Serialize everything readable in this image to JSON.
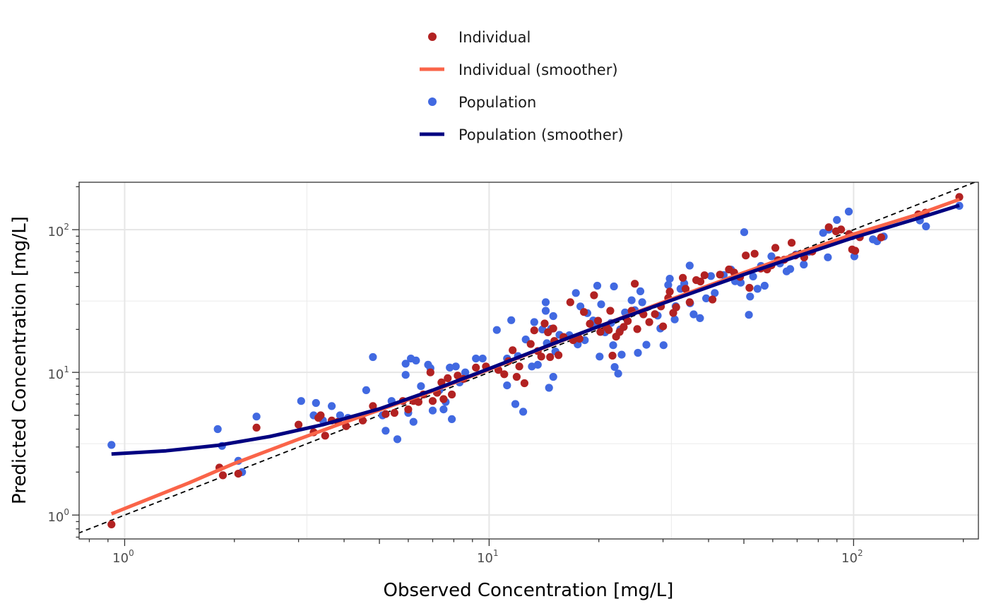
{
  "chart_data": {
    "type": "scatter",
    "xlabel": "Observed Concentration [mg/L]",
    "ylabel": "Predicted Concentration [mg/L]",
    "xscale": "log10",
    "yscale": "log10",
    "xlim": [
      0.75,
      220
    ],
    "ylim": [
      0.68,
      215
    ],
    "grid": true,
    "legend_position": "top",
    "x_ticks": [
      {
        "value": 1,
        "base": "10",
        "exp": "0"
      },
      {
        "value": 10,
        "base": "10",
        "exp": "1"
      },
      {
        "value": 100,
        "base": "10",
        "exp": "2"
      }
    ],
    "y_ticks": [
      {
        "value": 1,
        "base": "10",
        "exp": "0"
      },
      {
        "value": 10,
        "base": "10",
        "exp": "1"
      },
      {
        "value": 100,
        "base": "10",
        "exp": "2"
      }
    ],
    "identity_line": {
      "style": "dashed",
      "color": "#000000"
    },
    "legend": [
      {
        "label": "Individual",
        "kind": "point",
        "color": "#b22222"
      },
      {
        "label": "Individual (smoother)",
        "kind": "line",
        "color": "#fa6449"
      },
      {
        "label": "Population",
        "kind": "point",
        "color": "#4169e1"
      },
      {
        "label": "Population (smoother)",
        "kind": "line",
        "color": "#000080"
      }
    ],
    "series": [
      {
        "name": "Population",
        "color": "#4169e1",
        "points": [
          [
            0.92,
            3.1
          ],
          [
            1.8,
            4.0
          ],
          [
            1.85,
            3.05
          ],
          [
            2.05,
            2.4
          ],
          [
            2.1,
            2.0
          ],
          [
            2.3,
            4.9
          ],
          [
            3.05,
            6.3
          ],
          [
            3.3,
            5.0
          ],
          [
            3.35,
            6.1
          ],
          [
            3.5,
            4.6
          ],
          [
            3.7,
            5.8
          ],
          [
            3.9,
            5.0
          ],
          [
            4.1,
            4.8
          ],
          [
            4.6,
            7.5
          ],
          [
            4.8,
            12.8
          ],
          [
            5.1,
            5.0
          ],
          [
            5.2,
            3.9
          ],
          [
            5.4,
            6.3
          ],
          [
            5.6,
            3.4
          ],
          [
            5.9,
            11.5
          ],
          [
            5.9,
            9.6
          ],
          [
            6.1,
            12.5
          ],
          [
            6.0,
            5.2
          ],
          [
            6.2,
            4.5
          ],
          [
            6.3,
            12.1
          ],
          [
            6.5,
            8.0
          ],
          [
            6.8,
            11.3
          ],
          [
            6.9,
            10.7
          ],
          [
            7.0,
            5.4
          ],
          [
            7.3,
            7.5
          ],
          [
            7.5,
            5.5
          ],
          [
            7.6,
            6.2
          ],
          [
            7.8,
            10.8
          ],
          [
            7.9,
            4.7
          ],
          [
            8.1,
            11.0
          ],
          [
            8.3,
            8.5
          ],
          [
            8.6,
            10.0
          ],
          [
            9.2,
            12.5
          ],
          [
            9.6,
            12.5
          ],
          [
            10.5,
            19.8
          ],
          [
            11.2,
            12.5
          ],
          [
            11.2,
            8.1
          ],
          [
            11.5,
            23.2
          ],
          [
            11.8,
            6.0
          ],
          [
            12.0,
            13.0
          ],
          [
            12.4,
            5.3
          ],
          [
            12.6,
            17.0
          ],
          [
            13.1,
            11.0
          ],
          [
            13.3,
            22.5
          ],
          [
            13.6,
            11.3
          ],
          [
            14.0,
            20.0
          ],
          [
            14.3,
            31.0
          ],
          [
            14.3,
            27.0
          ],
          [
            14.4,
            16.0
          ],
          [
            14.6,
            7.8
          ],
          [
            14.8,
            20.2
          ],
          [
            15.0,
            9.3
          ],
          [
            15.0,
            24.8
          ],
          [
            15.2,
            14.0
          ],
          [
            15.6,
            18.3
          ],
          [
            16.6,
            18.2
          ],
          [
            17.3,
            36.0
          ],
          [
            17.5,
            15.7
          ],
          [
            17.8,
            29.0
          ],
          [
            18.3,
            16.8
          ],
          [
            18.6,
            26.0
          ],
          [
            19.3,
            23.1
          ],
          [
            19.6,
            21.5
          ],
          [
            19.8,
            40.5
          ],
          [
            20.1,
            12.9
          ],
          [
            20.3,
            30.0
          ],
          [
            20.8,
            19.1
          ],
          [
            21.6,
            22.2
          ],
          [
            21.9,
            15.5
          ],
          [
            22.0,
            40.0
          ],
          [
            22.1,
            10.9
          ],
          [
            22.6,
            9.8
          ],
          [
            22.9,
            20.0
          ],
          [
            23.1,
            13.3
          ],
          [
            23.6,
            26.3
          ],
          [
            24.6,
            32.0
          ],
          [
            25.1,
            27.3
          ],
          [
            25.6,
            13.7
          ],
          [
            26.0,
            37.0
          ],
          [
            26.3,
            31.0
          ],
          [
            27.0,
            15.6
          ],
          [
            29.0,
            25.0
          ],
          [
            29.5,
            20.3
          ],
          [
            30.1,
            15.5
          ],
          [
            31.3,
            45.3
          ],
          [
            31.0,
            41.0
          ],
          [
            32.3,
            23.5
          ],
          [
            32.5,
            29.1
          ],
          [
            33.5,
            38.5
          ],
          [
            34.3,
            42.0
          ],
          [
            35.5,
            56.0
          ],
          [
            35.6,
            30.5
          ],
          [
            36.4,
            25.5
          ],
          [
            37.9,
            24.0
          ],
          [
            39.4,
            33.0
          ],
          [
            40.6,
            47.3
          ],
          [
            41.6,
            36.0
          ],
          [
            44.0,
            48.0
          ],
          [
            46.1,
            52.5
          ],
          [
            47.3,
            43.5
          ],
          [
            49.0,
            42.5
          ],
          [
            50.1,
            96.0
          ],
          [
            51.6,
            25.3
          ],
          [
            52.0,
            34.0
          ],
          [
            53.0,
            47.0
          ],
          [
            54.5,
            38.5
          ],
          [
            55.7,
            55.7
          ],
          [
            57.0,
            40.5
          ],
          [
            59.5,
            65.0
          ],
          [
            62.8,
            58.0
          ],
          [
            65.5,
            51.0
          ],
          [
            67.0,
            53.0
          ],
          [
            69.5,
            67.0
          ],
          [
            73.0,
            57.0
          ],
          [
            75.4,
            70.0
          ],
          [
            82.5,
            95.0
          ],
          [
            85.5,
            100.0
          ],
          [
            85.0,
            64.0
          ],
          [
            90.0,
            117.0
          ],
          [
            97.0,
            134.0
          ],
          [
            99.0,
            90.0
          ],
          [
            100.5,
            65.0
          ],
          [
            113.0,
            85.5
          ],
          [
            116.0,
            83.0
          ],
          [
            121.0,
            89.5
          ],
          [
            152.0,
            116.0
          ],
          [
            158.0,
            105.5
          ],
          [
            195.0,
            147.0
          ]
        ]
      },
      {
        "name": "Individual",
        "color": "#b22222",
        "points": [
          [
            0.92,
            0.86
          ],
          [
            1.82,
            2.15
          ],
          [
            1.86,
            1.9
          ],
          [
            2.05,
            1.95
          ],
          [
            2.3,
            4.1
          ],
          [
            3.0,
            4.3
          ],
          [
            3.3,
            3.8
          ],
          [
            3.4,
            4.8
          ],
          [
            3.45,
            5.0
          ],
          [
            3.55,
            3.6
          ],
          [
            3.7,
            4.6
          ],
          [
            3.85,
            4.5
          ],
          [
            4.05,
            4.2
          ],
          [
            4.5,
            4.6
          ],
          [
            4.8,
            5.8
          ],
          [
            5.2,
            5.1
          ],
          [
            5.5,
            5.2
          ],
          [
            5.8,
            6.3
          ],
          [
            6.0,
            5.5
          ],
          [
            6.2,
            6.3
          ],
          [
            6.4,
            6.2
          ],
          [
            6.6,
            7.0
          ],
          [
            6.9,
            10.0
          ],
          [
            7.0,
            6.3
          ],
          [
            7.2,
            7.2
          ],
          [
            7.4,
            8.5
          ],
          [
            7.5,
            6.5
          ],
          [
            7.7,
            9.1
          ],
          [
            7.9,
            7.0
          ],
          [
            8.2,
            9.5
          ],
          [
            8.5,
            9.0
          ],
          [
            9.2,
            10.8
          ],
          [
            9.8,
            11.0
          ],
          [
            10.6,
            10.4
          ],
          [
            11.0,
            9.7
          ],
          [
            11.3,
            12.0
          ],
          [
            11.6,
            14.3
          ],
          [
            11.9,
            9.3
          ],
          [
            12.1,
            11.0
          ],
          [
            12.5,
            8.4
          ],
          [
            13.0,
            15.8
          ],
          [
            13.3,
            19.7
          ],
          [
            13.6,
            14.1
          ],
          [
            13.9,
            12.9
          ],
          [
            14.2,
            22.0
          ],
          [
            14.5,
            19.1
          ],
          [
            14.7,
            12.8
          ],
          [
            15.0,
            20.3
          ],
          [
            15.1,
            16.6
          ],
          [
            15.5,
            13.2
          ],
          [
            16.0,
            17.7
          ],
          [
            16.7,
            31.0
          ],
          [
            17.0,
            16.8
          ],
          [
            17.7,
            17.2
          ],
          [
            18.2,
            26.5
          ],
          [
            18.9,
            21.9
          ],
          [
            19.4,
            34.7
          ],
          [
            19.9,
            23.0
          ],
          [
            20.2,
            19.2
          ],
          [
            21.0,
            20.7
          ],
          [
            21.3,
            19.8
          ],
          [
            21.5,
            27.0
          ],
          [
            21.8,
            13.1
          ],
          [
            22.3,
            17.8
          ],
          [
            22.8,
            19.2
          ],
          [
            23.4,
            20.8
          ],
          [
            24.0,
            22.9
          ],
          [
            24.6,
            27.0
          ],
          [
            25.1,
            41.8
          ],
          [
            25.5,
            20.1
          ],
          [
            26.5,
            25.5
          ],
          [
            27.5,
            22.5
          ],
          [
            28.5,
            25.6
          ],
          [
            29.6,
            29.0
          ],
          [
            30.0,
            21.0
          ],
          [
            31.0,
            33.2
          ],
          [
            31.3,
            36.8
          ],
          [
            32.0,
            26.1
          ],
          [
            32.6,
            28.6
          ],
          [
            34.0,
            46.0
          ],
          [
            34.6,
            38.5
          ],
          [
            35.5,
            31.0
          ],
          [
            37.0,
            44.3
          ],
          [
            38.0,
            43.3
          ],
          [
            39.0,
            47.9
          ],
          [
            41.0,
            32.4
          ],
          [
            43.0,
            48.4
          ],
          [
            45.5,
            52.6
          ],
          [
            47.0,
            50.1
          ],
          [
            48.8,
            46.6
          ],
          [
            50.6,
            65.9
          ],
          [
            51.8,
            39.1
          ],
          [
            53.5,
            67.8
          ],
          [
            55.6,
            53.4
          ],
          [
            57.9,
            52.7
          ],
          [
            59.5,
            56.3
          ],
          [
            61.0,
            74.6
          ],
          [
            62.0,
            61.1
          ],
          [
            64.5,
            61.6
          ],
          [
            67.6,
            80.9
          ],
          [
            69.2,
            65.9
          ],
          [
            73.2,
            63.9
          ],
          [
            77.0,
            70.3
          ],
          [
            85.5,
            104.0
          ],
          [
            89.5,
            97.4
          ],
          [
            92.4,
            100.3
          ],
          [
            97.2,
            93.1
          ],
          [
            99.1,
            72.6
          ],
          [
            101.0,
            71.2
          ],
          [
            104.0,
            88.6
          ],
          [
            119.0,
            88.3
          ],
          [
            150.5,
            128.0
          ],
          [
            157.5,
            131.5
          ],
          [
            195.0,
            169.5
          ]
        ]
      }
    ],
    "smoothers": [
      {
        "name": "Individual (smoother)",
        "color": "#fa6449",
        "points": [
          [
            0.92,
            1.02
          ],
          [
            1.5,
            1.68
          ],
          [
            2.0,
            2.3
          ],
          [
            3.0,
            3.4
          ],
          [
            4.0,
            4.45
          ],
          [
            5.0,
            5.45
          ],
          [
            7.0,
            7.4
          ],
          [
            10.0,
            10.5
          ],
          [
            15.0,
            15.8
          ],
          [
            20.0,
            21.0
          ],
          [
            30.0,
            31.0
          ],
          [
            50.0,
            50.0
          ],
          [
            70.0,
            68.0
          ],
          [
            100.0,
            93.0
          ],
          [
            150.0,
            128.0
          ],
          [
            195.0,
            163.0
          ]
        ]
      },
      {
        "name": "Population (smoother)",
        "color": "#000080",
        "points": [
          [
            0.92,
            2.68
          ],
          [
            1.3,
            2.82
          ],
          [
            1.8,
            3.08
          ],
          [
            2.5,
            3.55
          ],
          [
            3.5,
            4.3
          ],
          [
            5.0,
            5.55
          ],
          [
            7.0,
            7.5
          ],
          [
            10.0,
            10.6
          ],
          [
            15.0,
            15.9
          ],
          [
            20.0,
            21.0
          ],
          [
            30.0,
            30.5
          ],
          [
            50.0,
            48.5
          ],
          [
            70.0,
            65.0
          ],
          [
            100.0,
            88.0
          ],
          [
            150.0,
            120.0
          ],
          [
            195.0,
            148.0
          ]
        ]
      }
    ]
  }
}
